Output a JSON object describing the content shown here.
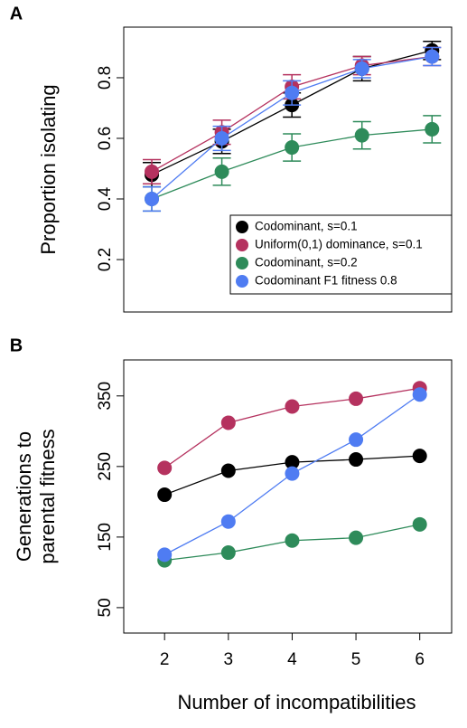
{
  "chart_data": [
    {
      "type": "line",
      "panel": "A",
      "ylabel": [
        "Proportion isolating"
      ],
      "x": [
        2,
        3,
        4,
        5,
        6
      ],
      "xlim": [
        1.6,
        6.28
      ],
      "ylim": [
        0.027,
        0.967
      ],
      "yticks": [
        0.2,
        0.4,
        0.6,
        0.8
      ],
      "legend": "bottom-right",
      "series": [
        {
          "name": "Codominant, s=0.1",
          "color": "#000000",
          "values": [
            0.48,
            0.59,
            0.71,
            0.83,
            0.89
          ],
          "errors": [
            0.04,
            0.04,
            0.04,
            0.04,
            0.03
          ]
        },
        {
          "name": "Uniform(0,1) dominance, s=0.1",
          "color": "#b5325f",
          "values": [
            0.49,
            0.62,
            0.77,
            0.84,
            0.87
          ],
          "errors": [
            0.04,
            0.04,
            0.04,
            0.03,
            0.03
          ]
        },
        {
          "name": "Codominant, s=0.2",
          "color": "#2e8b5a",
          "values": [
            0.4,
            0.49,
            0.57,
            0.61,
            0.63
          ],
          "errors": [
            0.04,
            0.045,
            0.045,
            0.045,
            0.045
          ]
        },
        {
          "name": "Codominant F1 fitness 0.8",
          "color": "#4f7cf2",
          "values": [
            0.4,
            0.6,
            0.75,
            0.83,
            0.87
          ],
          "errors": [
            0.04,
            0.04,
            0.04,
            0.03,
            0.03
          ]
        }
      ]
    },
    {
      "type": "line",
      "panel": "B",
      "ylabel": [
        "Generations to",
        "parental fitness"
      ],
      "xlabel": "Number of incompatibilities",
      "x": [
        2,
        3,
        4,
        5,
        6
      ],
      "xlim": [
        1.36,
        6.5
      ],
      "xticks": [
        2,
        3,
        4,
        5,
        6
      ],
      "ylim": [
        14,
        401
      ],
      "yticks": [
        50,
        150,
        250,
        350
      ],
      "series": [
        {
          "color": "#000000",
          "values": [
            210,
            244,
            256,
            260,
            265
          ]
        },
        {
          "color": "#b5325f",
          "values": [
            248,
            312,
            335,
            346,
            361
          ]
        },
        {
          "color": "#2e8b5a",
          "values": [
            117,
            128,
            145,
            149,
            168
          ]
        },
        {
          "color": "#4f7cf2",
          "values": [
            125,
            172,
            240,
            288,
            352
          ]
        }
      ]
    }
  ]
}
